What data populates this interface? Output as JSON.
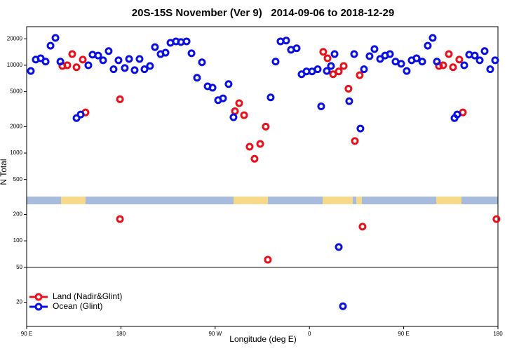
{
  "chart_data": {
    "type": "scatter",
    "title": "20S-15S November (Ver 9)   2014-09-06 to 2018-12-29",
    "x_label": "Longitude (deg E)",
    "y_label": "N Total",
    "xlim": [
      90,
      540
    ],
    "ylim": [
      10.6,
      27500
    ],
    "log_y": true,
    "xticks": [
      {
        "value": 90,
        "label": "90 E"
      },
      180,
      {
        "value": 270,
        "label": "90 W"
      },
      {
        "value": 360,
        "label": "0"
      },
      {
        "value": 450,
        "label": "90 E"
      },
      {
        "value": 540,
        "label": "180"
      }
    ],
    "yticks": [
      20,
      50,
      100,
      200,
      500,
      1000,
      2000,
      5000,
      10000,
      20000
    ],
    "hline": 50,
    "legend": "bottom left",
    "series": [
      {
        "name": "Land (Nadir&Glint)",
        "color": "#e8101a",
        "x": [
          124.1,
          128.8,
          133.5,
          137.6,
          143.6,
          146.2,
          179.1,
          179.1,
          288.9,
          292.9,
          297.6,
          302.9,
          307.6,
          313.0,
          318.3,
          320.3,
          373.2,
          377.3,
          382.6,
          388.0,
          392.7,
          397.3,
          403.4,
          408.0,
          410.7,
          483.7,
          487.7,
          493.1,
          497.1,
          503.1,
          506.5,
          538.6
        ],
        "values": [
          9800,
          10000,
          13400,
          9500,
          11600,
          2900,
          4100,
          177,
          3000,
          3700,
          2700,
          1180,
          860,
          1270,
          2000,
          61,
          14200,
          12000,
          7900,
          8500,
          9800,
          5400,
          1370,
          7700,
          145,
          9800,
          10000,
          13400,
          9500,
          11600,
          2900,
          177
        ]
      },
      {
        "name": "Ocean (Glint)",
        "color": "#0a10e0",
        "x": [
          94.0,
          98.7,
          103.4,
          108.1,
          112.8,
          117.5,
          122.2,
          137.6,
          141.6,
          148.9,
          152.9,
          158.3,
          163.0,
          168.3,
          173.0,
          177.7,
          183.7,
          187.8,
          193.1,
          197.8,
          202.5,
          207.8,
          212.5,
          217.9,
          222.6,
          227.3,
          232.6,
          237.3,
          242.7,
          247.4,
          252.7,
          257.4,
          262.8,
          267.5,
          272.8,
          277.5,
          282.8,
          287.5,
          323.0,
          327.7,
          332.4,
          337.8,
          342.4,
          347.8,
          352.5,
          357.2,
          362.5,
          367.9,
          371.2,
          376.6,
          380.6,
          384.0,
          388.0,
          392.0,
          398.0,
          402.7,
          408.7,
          412.1,
          417.4,
          422.1,
          427.5,
          432.2,
          436.9,
          442.2,
          447.6,
          452.9,
          457.6,
          462.3,
          467.7,
          473.0,
          477.7,
          481.7,
          498.5,
          501.1,
          507.8,
          512.5,
          517.9,
          522.6,
          527.3,
          532.6,
          537.3
        ],
        "values": [
          8600,
          11600,
          12000,
          11000,
          16700,
          20500,
          11000,
          2500,
          2750,
          10000,
          13200,
          12900,
          11400,
          14500,
          9000,
          11400,
          9300,
          11800,
          8800,
          11800,
          9000,
          9800,
          16100,
          13400,
          13900,
          18000,
          18700,
          18400,
          18700,
          13700,
          7200,
          10800,
          5750,
          5550,
          4000,
          4200,
          6100,
          2560,
          4300,
          11000,
          18700,
          19100,
          15000,
          15600,
          7900,
          8500,
          8500,
          9000,
          3400,
          8600,
          9800,
          13400,
          85,
          18,
          3900,
          13400,
          1900,
          9000,
          12700,
          15300,
          11800,
          12900,
          13400,
          11000,
          10400,
          8600,
          11400,
          12000,
          11000,
          16700,
          20500,
          11000,
          2500,
          2750,
          10000,
          13200,
          12900,
          11400,
          14500,
          9000,
          11400
        ]
      }
    ]
  }
}
